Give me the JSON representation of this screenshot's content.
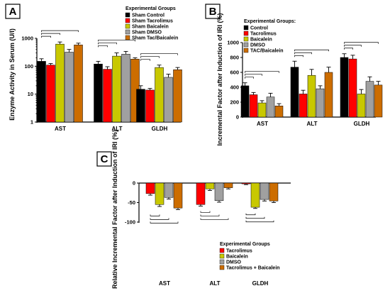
{
  "chart_data": [
    {
      "panel": "A",
      "type": "bar",
      "ylabel": "Enzyme Activity in Serum (U/l)",
      "yscale": "log",
      "ylim": [
        1,
        1000
      ],
      "yticks": [
        1,
        10,
        100,
        1000
      ],
      "ytick_labels": [
        "1",
        "10",
        "100",
        "1000"
      ],
      "categories": [
        "AST",
        "ALT",
        "GLDH"
      ],
      "legend_title": "Experimental Groups",
      "legend_placement": "top-right",
      "series": [
        {
          "name": "Sham Control",
          "color": "#000000",
          "values": [
            150,
            120,
            15
          ],
          "errors": [
            35,
            30,
            5
          ]
        },
        {
          "name": "Sham Tacrolimus",
          "color": "#ff0000",
          "values": [
            110,
            78,
            14
          ],
          "errors": [
            15,
            18,
            2
          ]
        },
        {
          "name": "Sham Baicalein",
          "color": "#c8c800",
          "values": [
            620,
            230,
            90
          ],
          "errors": [
            120,
            70,
            20
          ]
        },
        {
          "name": "Sham DMSO",
          "color": "#a0a0a0",
          "values": [
            320,
            270,
            40
          ],
          "errors": [
            80,
            70,
            12
          ]
        },
        {
          "name": "Sham Tac/Baicalein",
          "color": "#cc6d00",
          "values": [
            580,
            180,
            75
          ],
          "errors": [
            90,
            20,
            15
          ]
        }
      ]
    },
    {
      "panel": "B",
      "type": "bar",
      "ylabel": "Incremental Factor after Induction of IRI (%)",
      "ylim": [
        0,
        1000
      ],
      "yticks": [
        0,
        200,
        400,
        600,
        800,
        1000
      ],
      "categories": [
        "AST",
        "ALT",
        "GLDH"
      ],
      "legend_title": "Experimental Groups:",
      "legend_placement": "top-left",
      "series": [
        {
          "name": "Control",
          "color": "#000000",
          "values": [
            420,
            670,
            800
          ],
          "errors": [
            40,
            80,
            50
          ]
        },
        {
          "name": "Tacrolimus",
          "color": "#ff0000",
          "values": [
            300,
            310,
            780
          ],
          "errors": [
            30,
            50,
            50
          ]
        },
        {
          "name": "Baicalein",
          "color": "#c8c800",
          "values": [
            190,
            560,
            310
          ],
          "errors": [
            30,
            80,
            60
          ]
        },
        {
          "name": "DMSO",
          "color": "#a0a0a0",
          "values": [
            270,
            380,
            480
          ],
          "errors": [
            50,
            40,
            60
          ]
        },
        {
          "name": "TAC/Baicalein",
          "color": "#cc6d00",
          "values": [
            150,
            600,
            430
          ],
          "errors": [
            30,
            70,
            50
          ]
        }
      ]
    },
    {
      "panel": "C",
      "type": "bar",
      "ylabel": "Relative Incremental Factor after Induction of IRI (%)",
      "ylim": [
        -100,
        0
      ],
      "yticks": [
        -100,
        -50,
        0
      ],
      "categories": [
        "AST",
        "ALT",
        "GLDH"
      ],
      "legend_title": "Experimental Groups",
      "legend_placement": "bottom-right",
      "series": [
        {
          "name": "Tacrolimus",
          "color": "#ff0000",
          "values": [
            -27,
            -55,
            -2
          ],
          "errors": [
            4,
            4,
            2
          ]
        },
        {
          "name": "Baicalein",
          "color": "#c8c800",
          "values": [
            -55,
            -15,
            -62
          ],
          "errors": [
            5,
            4,
            3
          ]
        },
        {
          "name": "DMSO",
          "color": "#a0a0a0",
          "values": [
            -37,
            -45,
            -42
          ],
          "errors": [
            4,
            4,
            4
          ]
        },
        {
          "name": "Tacrolimus + Baicalein",
          "color": "#cc6d00",
          "values": [
            -64,
            -12,
            -46
          ],
          "errors": [
            4,
            3,
            4
          ]
        }
      ]
    }
  ]
}
